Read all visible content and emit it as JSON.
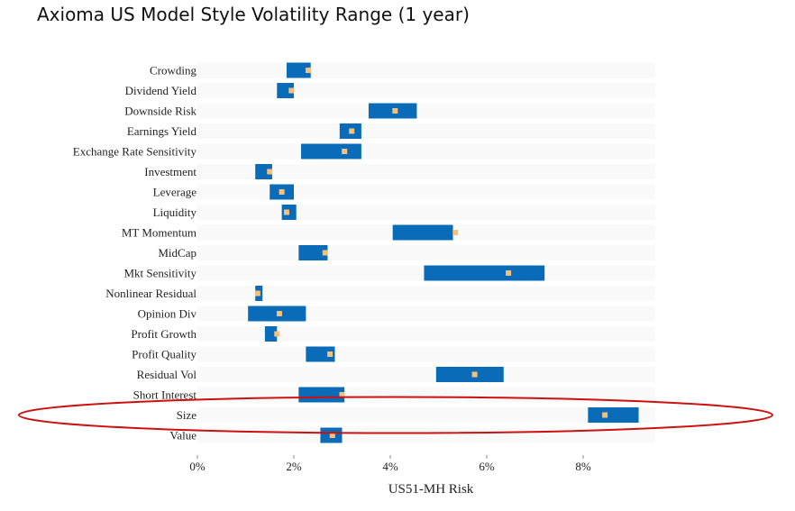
{
  "title": "Axioma US Model Style Volatility Range (1 year)",
  "chart_data": {
    "type": "bar",
    "subtype": "floating-range",
    "orientation": "horizontal",
    "xlabel": "US51-MH Risk",
    "xlim": [
      0,
      9.5
    ],
    "xticks": [
      0,
      2,
      4,
      6,
      8
    ],
    "xtick_labels": [
      "0%",
      "2%",
      "4%",
      "6%",
      "8%"
    ],
    "categories": [
      "Crowding",
      "Dividend Yield",
      "Downside Risk",
      "Earnings Yield",
      "Exchange Rate Sensitivity",
      "Investment",
      "Leverage",
      "Liquidity",
      "MT Momentum",
      "MidCap",
      "Mkt Sensitivity",
      "Nonlinear Residual",
      "Opinion Div",
      "Profit Growth",
      "Profit Quality",
      "Residual Vol",
      "Short Interest",
      "Size",
      "Value"
    ],
    "series": [
      {
        "values": [
          [
            1.85,
            2.35
          ],
          [
            1.65,
            2.0
          ],
          [
            3.55,
            4.55
          ],
          [
            2.95,
            3.4
          ],
          [
            2.15,
            3.4
          ],
          [
            1.2,
            1.55
          ],
          [
            1.5,
            2.0
          ],
          [
            1.75,
            2.05
          ],
          [
            4.05,
            5.3
          ],
          [
            2.1,
            2.7
          ],
          [
            4.7,
            7.2
          ],
          [
            1.2,
            1.35
          ],
          [
            1.05,
            2.25
          ],
          [
            1.4,
            1.65
          ],
          [
            2.25,
            2.85
          ],
          [
            4.95,
            6.35
          ],
          [
            2.1,
            3.05
          ],
          [
            8.1,
            9.15
          ],
          [
            2.55,
            3.0
          ]
        ]
      },
      {
        "values": [
          2.3,
          1.95,
          4.1,
          3.2,
          3.05,
          1.5,
          1.75,
          1.85,
          5.35,
          2.65,
          6.45,
          1.25,
          1.7,
          1.65,
          2.75,
          5.75,
          3.0,
          8.45,
          2.8
        ]
      }
    ],
    "highlight": "Size",
    "colors": {
      "range": "#0A6BB8",
      "marker": "#F4C17C",
      "highlight": "#CC1111",
      "track": "#EEEEEE"
    }
  }
}
